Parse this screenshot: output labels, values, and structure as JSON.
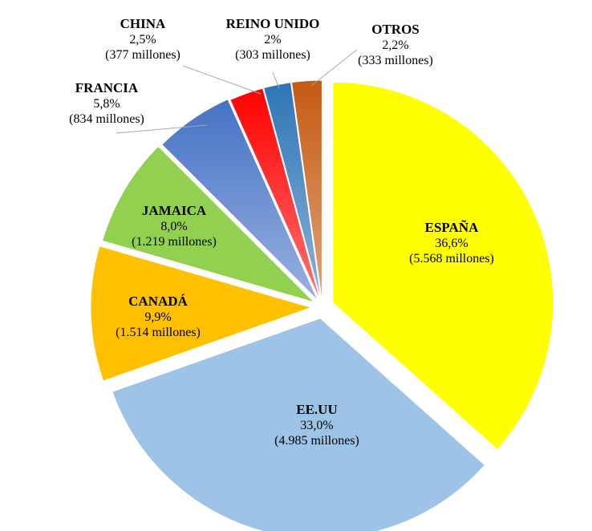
{
  "chart_data": {
    "type": "pie",
    "title": "",
    "series": [
      {
        "values": [
          36.6,
          33.0,
          9.9,
          8.0,
          5.8,
          2.5,
          2.0,
          2.2
        ],
        "categories": [
          "ESPAÑA",
          "EE.UU",
          "CANADÁ",
          "JAMAICA",
          "FRANCIA",
          "CHINA",
          "REINO UNIDO",
          "OTROS"
        ]
      }
    ],
    "slices": [
      {
        "label": "ESPAÑA",
        "value": 36.6,
        "pct_text": "36,6%",
        "amount_text": "(5.568 millones)",
        "color": "#FFFF00",
        "label_position": "inside"
      },
      {
        "label": "EE.UU",
        "value": 33.0,
        "pct_text": "33,0%",
        "amount_text": "(4.985 millones)",
        "color": "#9DC3E6",
        "label_position": "inside"
      },
      {
        "label": "CANADÁ",
        "value": 9.9,
        "pct_text": "9,9%",
        "amount_text": "(1.514 millones)",
        "color": "#FFC000",
        "label_position": "inside"
      },
      {
        "label": "JAMAICA",
        "value": 8.0,
        "pct_text": "8,0%",
        "amount_text": "(1.219 millones)",
        "color": "#92D050",
        "label_position": "inside"
      },
      {
        "label": "FRANCIA",
        "value": 5.8,
        "pct_text": "5,8%",
        "amount_text": "(834 millones)",
        "color": "#4472C4",
        "label_position": "outside"
      },
      {
        "label": "CHINA",
        "value": 2.5,
        "pct_text": "2,5%",
        "amount_text": "(377 millones)",
        "color": "#FF0000",
        "label_position": "outside"
      },
      {
        "label": "REINO UNIDO",
        "value": 2.0,
        "pct_text": "2%",
        "amount_text": "(303 millones)",
        "color": "#2E75B6",
        "label_position": "outside"
      },
      {
        "label": "OTROS",
        "value": 2.2,
        "pct_text": "2,2%",
        "amount_text": "(333 millones)",
        "color": "#C55A11",
        "label_position": "outside"
      }
    ],
    "legend": "none",
    "exploded": true
  }
}
